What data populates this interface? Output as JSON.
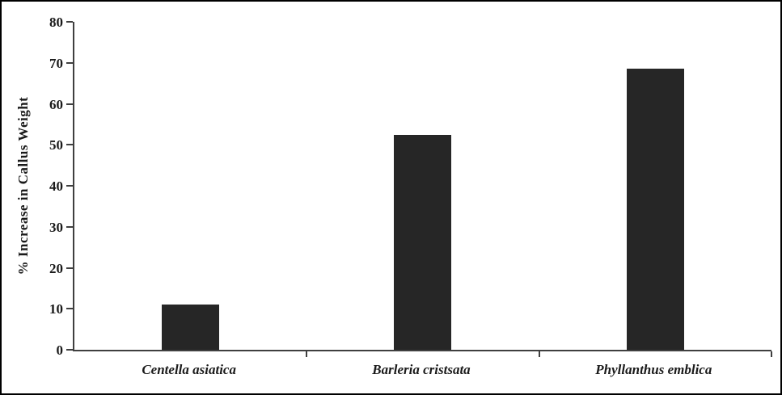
{
  "figure": {
    "background_color": "#ffffff",
    "border_color": "#000000"
  },
  "chart_data": {
    "type": "bar",
    "title": "",
    "categories": [
      "Centella asiatica",
      "Barleria cristsata",
      "Phyllanthus emblica"
    ],
    "values": [
      11,
      52.5,
      68.5
    ],
    "xlabel": "",
    "ylabel": "% Increase in Callus Weight",
    "ylim": [
      0,
      80
    ],
    "yticks": [
      0,
      10,
      20,
      30,
      40,
      50,
      60,
      70,
      80
    ],
    "bar_color": "#262626",
    "axis_color": "#3f3f3f",
    "grid": false,
    "legend": false,
    "category_label_style": "bold-italic-serif"
  }
}
